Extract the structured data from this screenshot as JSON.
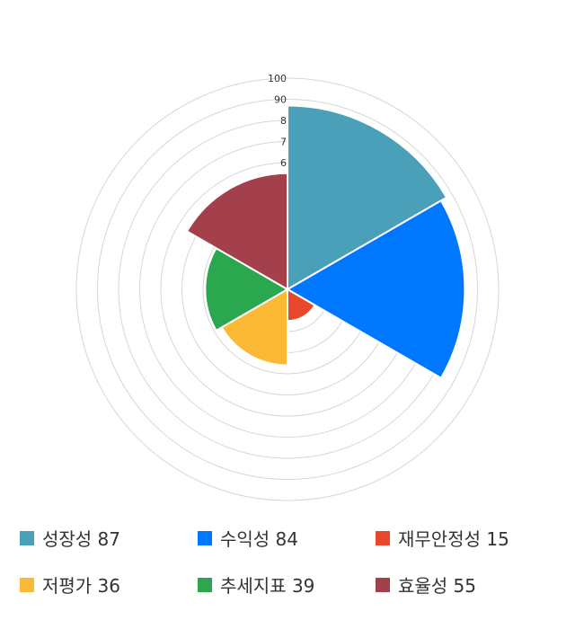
{
  "chart_data": {
    "type": "polar-area",
    "categories": [
      "성장성",
      "수익성",
      "재무안정성",
      "저평가",
      "추세지표",
      "효율성"
    ],
    "values": [
      87,
      84,
      15,
      36,
      39,
      55
    ],
    "colors": [
      "#4aa0b8",
      "#0077ff",
      "#e8482a",
      "#fbb935",
      "#2ba74f",
      "#a4404c"
    ],
    "rlim": [
      0,
      100
    ],
    "tick_labels": [
      "6",
      "7",
      "8",
      "90",
      "100"
    ],
    "legend_position": "bottom",
    "legend_labels": [
      "성장성 87",
      "수익성 84",
      "재무안정성 15",
      "저평가 36",
      "추세지표 39",
      "효율성 55"
    ]
  }
}
